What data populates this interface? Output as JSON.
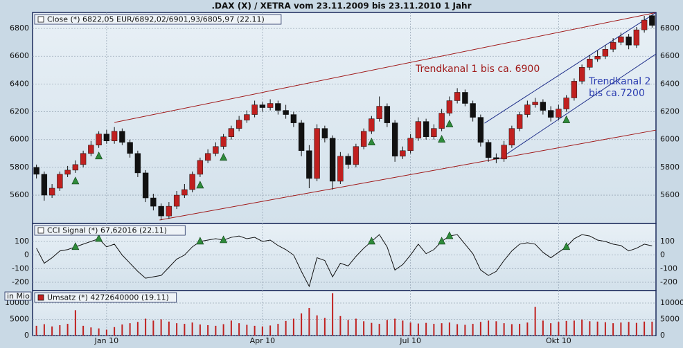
{
  "chart_data": [
    {
      "type": "candlestick",
      "title": ".DAX (X) / XETRA vom 23.11.2009 bis 23.11.2010 1 Jahr",
      "legend": "Close (*) 6822,05 EUR/6892,02/6901,93/6805,97 (22.11)",
      "categories": [
        null,
        null,
        null,
        null,
        null,
        null,
        null,
        null,
        null,
        "Jan 10",
        null,
        null,
        null,
        null,
        null,
        null,
        null,
        null,
        null,
        null,
        null,
        null,
        null,
        null,
        null,
        null,
        null,
        null,
        null,
        "Apr 10",
        null,
        null,
        null,
        null,
        null,
        null,
        null,
        null,
        null,
        null,
        null,
        null,
        null,
        null,
        null,
        null,
        null,
        null,
        "Jul 10",
        null,
        null,
        null,
        null,
        null,
        null,
        null,
        null,
        null,
        null,
        null,
        null,
        null,
        null,
        null,
        null,
        null,
        null,
        "Okt 10",
        null,
        null,
        null,
        null,
        null,
        null,
        null,
        null,
        null,
        null,
        null,
        null
      ],
      "open": [
        5800,
        5750,
        5600,
        5650,
        5750,
        5780,
        5820,
        5900,
        5960,
        6040,
        5990,
        6060,
        5980,
        5900,
        5760,
        5580,
        5520,
        5450,
        5520,
        5600,
        5640,
        5750,
        5850,
        5900,
        5950,
        6020,
        6080,
        6140,
        6180,
        6250,
        6230,
        6260,
        6210,
        6180,
        6120,
        5920,
        5720,
        6080,
        6010,
        5700,
        5880,
        5820,
        5950,
        6060,
        6150,
        6240,
        6120,
        5880,
        5920,
        6010,
        6130,
        6020,
        6080,
        6190,
        6280,
        6340,
        6260,
        6160,
        5980,
        5870,
        5860,
        5960,
        6080,
        6180,
        6250,
        6270,
        6210,
        6160,
        6220,
        6300,
        6420,
        6520,
        6580,
        6600,
        6650,
        6700,
        6740,
        6680,
        6790,
        6892.02
      ],
      "high": [
        5820,
        5770,
        5680,
        5770,
        5810,
        5850,
        5920,
        5990,
        6060,
        6070,
        6090,
        6080,
        6000,
        5920,
        5780,
        5610,
        5540,
        5550,
        5630,
        5680,
        5770,
        5870,
        5930,
        5980,
        6040,
        6100,
        6170,
        6210,
        6280,
        6270,
        6290,
        6280,
        6250,
        6200,
        6140,
        5960,
        6110,
        6100,
        6030,
        5910,
        5900,
        5970,
        6080,
        6170,
        6310,
        6260,
        6140,
        5950,
        6040,
        6160,
        6150,
        6110,
        6220,
        6310,
        6370,
        6360,
        6280,
        6180,
        6000,
        5900,
        5990,
        6100,
        6200,
        6280,
        6300,
        6290,
        6240,
        6250,
        6320,
        6440,
        6540,
        6610,
        6640,
        6680,
        6730,
        6770,
        6760,
        6810,
        6890,
        6901.93
      ],
      "low": [
        5720,
        5560,
        5580,
        5630,
        5730,
        5760,
        5800,
        5880,
        5940,
        5970,
        5970,
        5960,
        5870,
        5730,
        5550,
        5490,
        5420,
        5430,
        5500,
        5580,
        5620,
        5730,
        5830,
        5880,
        5930,
        6000,
        6060,
        6120,
        6160,
        6200,
        6210,
        6180,
        6150,
        6090,
        5880,
        5650,
        5700,
        5980,
        5640,
        5680,
        5790,
        5800,
        5930,
        6040,
        6130,
        6090,
        5840,
        5860,
        5900,
        5990,
        6000,
        6000,
        6060,
        6170,
        6260,
        6240,
        6130,
        5950,
        5840,
        5830,
        5840,
        5940,
        6060,
        6160,
        6230,
        6180,
        6130,
        6140,
        6200,
        6280,
        6400,
        6500,
        6560,
        6580,
        6630,
        6680,
        6650,
        6660,
        6770,
        6805.97
      ],
      "close": [
        5750,
        5600,
        5650,
        5750,
        5780,
        5820,
        5900,
        5960,
        6040,
        5990,
        6060,
        5980,
        5900,
        5760,
        5580,
        5520,
        5450,
        5520,
        5600,
        5640,
        5750,
        5850,
        5900,
        5950,
        6020,
        6080,
        6140,
        6180,
        6250,
        6230,
        6260,
        6210,
        6180,
        6120,
        5920,
        5720,
        6080,
        6010,
        5700,
        5880,
        5820,
        5950,
        6060,
        6150,
        6240,
        6120,
        5880,
        5920,
        6010,
        6130,
        6020,
        6080,
        6190,
        6280,
        6340,
        6260,
        6160,
        5980,
        5870,
        5860,
        5960,
        6080,
        6180,
        6250,
        6270,
        6210,
        6160,
        6220,
        6300,
        6420,
        6520,
        6580,
        6600,
        6650,
        6700,
        6740,
        6680,
        6790,
        6860,
        6822.05
      ],
      "up_color": "#c0201f",
      "down_color": "#111111",
      "ylim": [
        5396,
        6915
      ],
      "yticks": [
        5600,
        5800,
        6000,
        6200,
        6400,
        6600,
        6800
      ],
      "trendlines": [
        {
          "color": "#a01818",
          "x": [
            10,
            79.5
          ],
          "y": [
            6123,
            6914
          ]
        },
        {
          "color": "#a01818",
          "x": [
            15.8,
            79.5
          ],
          "y": [
            5421,
            6068
          ]
        },
        {
          "color": "#1f2f8a",
          "x": [
            57.5,
            79.5
          ],
          "y": [
            6118,
            6914
          ]
        },
        {
          "color": "#1f2f8a",
          "x": [
            59.5,
            79.5
          ],
          "y": [
            5864,
            6616
          ]
        }
      ],
      "annotations": [
        {
          "lines": [
            "Trendkanal 1 bis ca. 6900"
          ],
          "color": "#a01818"
        },
        {
          "lines": [
            "Trendkanal 2",
            "bis ca.7200"
          ],
          "color": "#2a3cb0"
        }
      ],
      "buy_signals": [
        5,
        8,
        21,
        24,
        43,
        52,
        53,
        68
      ],
      "signal_color": "#2e8b3a"
    },
    {
      "type": "line",
      "legend": "CCI Signal (*) 67,62016 (22.11)",
      "values": [
        50,
        -60,
        -20,
        30,
        40,
        60,
        80,
        100,
        120,
        60,
        80,
        0,
        -60,
        -120,
        -170,
        -160,
        -150,
        -90,
        -30,
        0,
        60,
        100,
        110,
        120,
        110,
        130,
        140,
        120,
        130,
        100,
        110,
        70,
        40,
        0,
        -120,
        -230,
        -20,
        -40,
        -160,
        -60,
        -80,
        -10,
        50,
        100,
        150,
        60,
        -110,
        -70,
        0,
        80,
        10,
        40,
        100,
        140,
        150,
        80,
        10,
        -110,
        -150,
        -120,
        -40,
        30,
        80,
        90,
        80,
        20,
        -20,
        20,
        60,
        120,
        150,
        140,
        110,
        100,
        80,
        70,
        30,
        50,
        80,
        67.62
      ],
      "color": "#111111",
      "ylim": [
        -261,
        232
      ],
      "yticks": [
        -200,
        -100,
        0,
        100
      ]
    },
    {
      "type": "bar",
      "legend": "Umsatz (*) 4272640000 (19.11)",
      "unit_label": "in Mio",
      "values": [
        3000,
        3500,
        2800,
        3200,
        3600,
        7800,
        3000,
        2500,
        2200,
        1800,
        2600,
        3400,
        3800,
        4200,
        5200,
        4600,
        5000,
        4300,
        3800,
        3600,
        4000,
        3400,
        3200,
        3000,
        3500,
        4600,
        3800,
        3300,
        3000,
        2800,
        3100,
        3600,
        4500,
        5200,
        6800,
        8500,
        6200,
        5400,
        13000,
        6000,
        4800,
        5200,
        4400,
        3900,
        3600,
        4800,
        5200,
        4600,
        4000,
        3700,
        3900,
        3600,
        3800,
        4000,
        3500,
        3300,
        3600,
        4200,
        4600,
        4400,
        3800,
        3500,
        3600,
        4000,
        8800,
        4600,
        3800,
        4200,
        4500,
        4600,
        4900,
        4400,
        4300,
        4100,
        3800,
        4000,
        4200,
        3900,
        4300,
        4272.64
      ],
      "color": "#c0201f",
      "ylim": [
        0,
        13830
      ],
      "yticks": [
        0,
        5000,
        10000
      ]
    }
  ]
}
